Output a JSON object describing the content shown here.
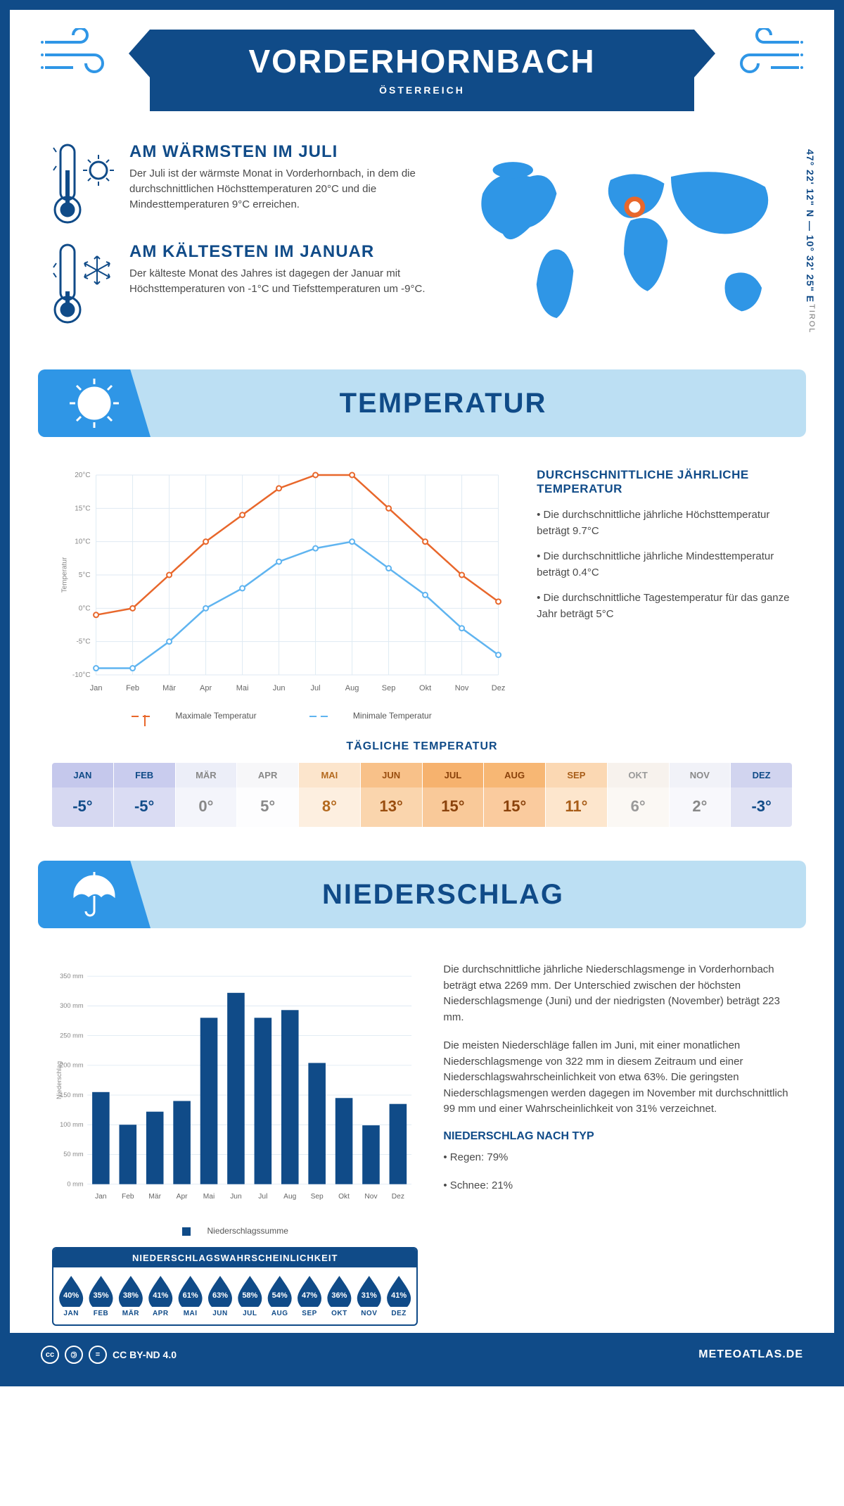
{
  "colors": {
    "brand": "#104b88",
    "accent": "#2f96e6",
    "lightblue": "#bcdff3",
    "orange": "#e8672b",
    "text": "#4a4a4a",
    "grid": "#dfeaf3"
  },
  "header": {
    "title": "VORDERHORNBACH",
    "subtitle": "ÖSTERREICH"
  },
  "map": {
    "coords": "47° 22' 12\" N — 10° 32' 25\" E",
    "region": "TIROL",
    "marker_color": "#e8672b"
  },
  "callouts": {
    "warm": {
      "title": "AM WÄRMSTEN IM JULI",
      "body": "Der Juli ist der wärmste Monat in Vorderhornbach, in dem die durchschnittlichen Höchsttemperaturen 20°C und die Mindesttemperaturen 9°C erreichen."
    },
    "cold": {
      "title": "AM KÄLTESTEN IM JANUAR",
      "body": "Der kälteste Monat des Jahres ist dagegen der Januar mit Höchsttemperaturen von -1°C und Tiefsttemperaturen um -9°C."
    }
  },
  "sections": {
    "temperature": "TEMPERATUR",
    "precipitation": "NIEDERSCHLAG"
  },
  "months": [
    "Jan",
    "Feb",
    "Mär",
    "Apr",
    "Mai",
    "Jun",
    "Jul",
    "Aug",
    "Sep",
    "Okt",
    "Nov",
    "Dez"
  ],
  "temp_chart": {
    "type": "line",
    "y_axis_label": "Temperatur",
    "ylim": [
      -10,
      20
    ],
    "ytick_step": 5,
    "y_labels": [
      "-10°C",
      "-5°C",
      "0°C",
      "5°C",
      "10°C",
      "15°C",
      "20°C"
    ],
    "series": {
      "max": {
        "label": "Maximale Temperatur",
        "color": "#e8672b",
        "values": [
          -1,
          0,
          5,
          10,
          14,
          18,
          20,
          20,
          15,
          10,
          5,
          1
        ]
      },
      "min": {
        "label": "Minimale Temperatur",
        "color": "#5fb4f0",
        "values": [
          -9,
          -9,
          -5,
          0,
          3,
          7,
          9,
          10,
          6,
          2,
          -3,
          -7
        ]
      }
    }
  },
  "temp_info": {
    "heading": "DURCHSCHNITTLICHE JÄHRLICHE TEMPERATUR",
    "p1": "• Die durchschnittliche jährliche Höchsttemperatur beträgt 9.7°C",
    "p2": "• Die durchschnittliche jährliche Mindesttemperatur beträgt 0.4°C",
    "p3": "• Die durchschnittliche Tagestemperatur für das ganze Jahr beträgt 5°C"
  },
  "daily_temp": {
    "heading": "TÄGLICHE TEMPERATUR",
    "cells": [
      {
        "m": "JAN",
        "v": "-5°",
        "header_bg": "#c5c8ec",
        "body_bg": "#d6d8f1",
        "txt": "#104b88"
      },
      {
        "m": "FEB",
        "v": "-5°",
        "header_bg": "#c9ccee",
        "body_bg": "#dadcf3",
        "txt": "#104b88"
      },
      {
        "m": "MÄR",
        "v": "0°",
        "header_bg": "#eceef8",
        "body_bg": "#f4f5fb",
        "txt": "#888"
      },
      {
        "m": "APR",
        "v": "5°",
        "header_bg": "#f7f7f9",
        "body_bg": "#fdfdfe",
        "txt": "#888"
      },
      {
        "m": "MAI",
        "v": "8°",
        "header_bg": "#fce5cc",
        "body_bg": "#fdefe0",
        "txt": "#b46a1f"
      },
      {
        "m": "JUN",
        "v": "13°",
        "header_bg": "#f8c189",
        "body_bg": "#fad5ad",
        "txt": "#9a4e0f"
      },
      {
        "m": "JUL",
        "v": "15°",
        "header_bg": "#f6b26e",
        "body_bg": "#f9c999",
        "txt": "#8a420b"
      },
      {
        "m": "AUG",
        "v": "15°",
        "header_bg": "#f7b774",
        "body_bg": "#facb9e",
        "txt": "#8a420b"
      },
      {
        "m": "SEP",
        "v": "11°",
        "header_bg": "#fbd8b3",
        "body_bg": "#fde6cd",
        "txt": "#a85d18"
      },
      {
        "m": "OKT",
        "v": "6°",
        "header_bg": "#f7f2ed",
        "body_bg": "#fbf8f4",
        "txt": "#999"
      },
      {
        "m": "NOV",
        "v": "2°",
        "header_bg": "#f1f2f8",
        "body_bg": "#f8f8fc",
        "txt": "#888"
      },
      {
        "m": "DEZ",
        "v": "-3°",
        "header_bg": "#d1d4ef",
        "body_bg": "#e0e2f4",
        "txt": "#104b88"
      }
    ]
  },
  "precip_chart": {
    "type": "bar",
    "y_axis_label": "Niederschlag",
    "ylim": [
      0,
      350
    ],
    "ytick_step": 50,
    "y_labels": [
      "0 mm",
      "50 mm",
      "100 mm",
      "150 mm",
      "200 mm",
      "250 mm",
      "300 mm",
      "350 mm"
    ],
    "bar_color": "#104b88",
    "legend": "Niederschlagssumme",
    "values": [
      155,
      100,
      122,
      140,
      280,
      322,
      280,
      293,
      204,
      145,
      99,
      135
    ]
  },
  "precip_info": {
    "p1": "Die durchschnittliche jährliche Niederschlagsmenge in Vorderhornbach beträgt etwa 2269 mm. Der Unterschied zwischen der höchsten Niederschlagsmenge (Juni) und der niedrigsten (November) beträgt 223 mm.",
    "p2": "Die meisten Niederschläge fallen im Juni, mit einer monatlichen Niederschlagsmenge von 322 mm in diesem Zeitraum und einer Niederschlagswahrscheinlichkeit von etwa 63%. Die geringsten Niederschlagsmengen werden dagegen im November mit durchschnittlich 99 mm und einer Wahrscheinlichkeit von 31% verzeichnet.",
    "type_heading": "NIEDERSCHLAG NACH TYP",
    "type1": "• Regen: 79%",
    "type2": "• Schnee: 21%"
  },
  "precip_prob": {
    "heading": "NIEDERSCHLAGSWAHRSCHEINLICHKEIT",
    "values": [
      "40%",
      "35%",
      "38%",
      "41%",
      "61%",
      "63%",
      "58%",
      "54%",
      "47%",
      "36%",
      "31%",
      "41%"
    ]
  },
  "footer": {
    "license": "CC BY-ND 4.0",
    "site": "METEOATLAS.DE"
  }
}
